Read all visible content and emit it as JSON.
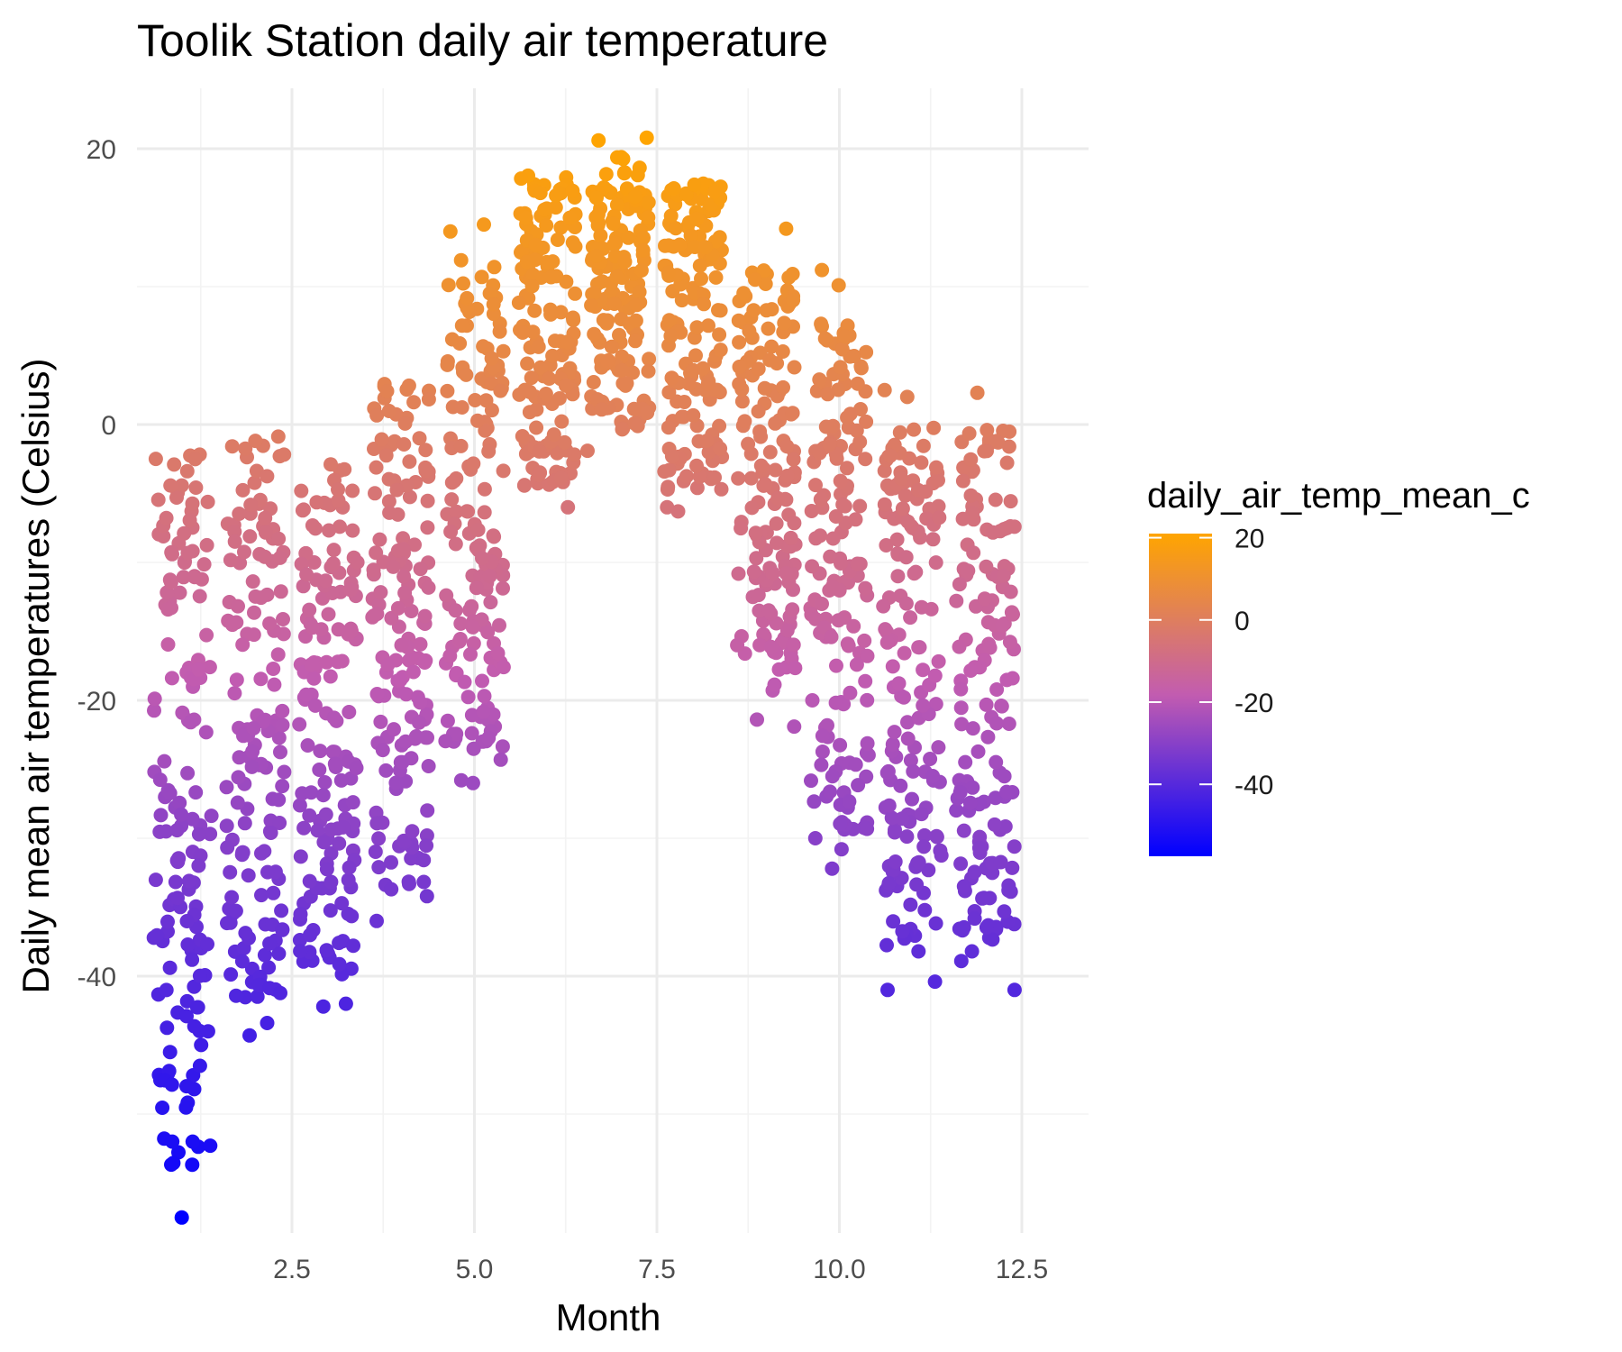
{
  "chart_data": {
    "type": "scatter",
    "title": "Toolik Station daily air temperature",
    "xlabel": "Month",
    "ylabel": "Daily mean air temperatures (Celsius)",
    "xlim": [
      0.45,
      12.85
    ],
    "ylim": [
      -58.5,
      25
    ],
    "x_ticks": [
      2.5,
      5.0,
      7.5,
      10.0,
      12.5
    ],
    "x_tick_labels": [
      "2.5",
      "5.0",
      "7.5",
      "10.0",
      "12.5"
    ],
    "y_ticks": [
      20,
      0,
      -20,
      -40
    ],
    "y_tick_labels": [
      "20",
      "0",
      "-20",
      "-40"
    ],
    "grid": true,
    "color_scale": {
      "variable": "daily_air_temp_mean_c",
      "low_color": "#0000ff",
      "high_color": "#ffa500",
      "range": [
        -57.5,
        21
      ],
      "ticks": [
        20,
        0,
        -20,
        -40
      ],
      "tick_labels": [
        "20",
        "0",
        "-20",
        "-40"
      ],
      "legend_position": "right"
    },
    "month_summary": [
      {
        "month": 1,
        "min": -57.5,
        "max": 1.5
      },
      {
        "month": 2,
        "min": -44.5,
        "max": 2.0
      },
      {
        "month": 3,
        "min": -42.5,
        "max": 1.0
      },
      {
        "month": 4,
        "min": -36.0,
        "max": 6.5
      },
      {
        "month": 5,
        "min": -26.0,
        "max": 14.5
      },
      {
        "month": 6,
        "min": -6.0,
        "max": 19.7
      },
      {
        "month": 7,
        "min": -2.0,
        "max": 20.8
      },
      {
        "month": 8,
        "min": -6.3,
        "max": 19.0
      },
      {
        "month": 9,
        "min": -21.5,
        "max": 14.0
      },
      {
        "month": 10,
        "min": -32.0,
        "max": 10.0
      },
      {
        "month": 11,
        "min": -41.0,
        "max": 2.5
      },
      {
        "month": 12,
        "min": -41.0,
        "max": 2.3
      }
    ],
    "highlight_points": [
      {
        "x": 0.99,
        "y": -57.5
      },
      {
        "x": 0.86,
        "y": -52.0
      },
      {
        "x": 1.14,
        "y": -52.0
      },
      {
        "x": 0.83,
        "y": -45.5
      },
      {
        "x": 1.24,
        "y": -46.5
      },
      {
        "x": 1.35,
        "y": -44.0
      },
      {
        "x": 1.92,
        "y": -44.3
      },
      {
        "x": 2.16,
        "y": -43.4
      },
      {
        "x": 2.93,
        "y": -42.2
      },
      {
        "x": 3.24,
        "y": -42.0
      },
      {
        "x": 3.66,
        "y": -36.0
      },
      {
        "x": 3.86,
        "y": -33.7
      },
      {
        "x": 4.35,
        "y": -34.2
      },
      {
        "x": 4.82,
        "y": -25.8
      },
      {
        "x": 4.98,
        "y": -26.0
      },
      {
        "x": 5.36,
        "y": -24.3
      },
      {
        "x": 4.67,
        "y": 14.0
      },
      {
        "x": 5.13,
        "y": 14.5
      },
      {
        "x": 6.7,
        "y": 20.6
      },
      {
        "x": 7.36,
        "y": 20.8
      },
      {
        "x": 6.28,
        "y": -6.0
      },
      {
        "x": 6.55,
        "y": -1.9
      },
      {
        "x": 7.64,
        "y": -6.0
      },
      {
        "x": 7.79,
        "y": -6.3
      },
      {
        "x": 8.87,
        "y": -21.4
      },
      {
        "x": 9.38,
        "y": -21.9
      },
      {
        "x": 8.6,
        "y": -16.0
      },
      {
        "x": 9.27,
        "y": 14.2
      },
      {
        "x": 9.76,
        "y": 11.2
      },
      {
        "x": 9.99,
        "y": 10.1
      },
      {
        "x": 9.67,
        "y": -30.0
      },
      {
        "x": 9.9,
        "y": -32.2
      },
      {
        "x": 10.03,
        "y": -30.8
      },
      {
        "x": 10.62,
        "y": 2.5
      },
      {
        "x": 10.66,
        "y": -41.0
      },
      {
        "x": 10.93,
        "y": 2.0
      },
      {
        "x": 11.31,
        "y": -40.4
      },
      {
        "x": 11.67,
        "y": -38.9
      },
      {
        "x": 11.89,
        "y": 2.3
      },
      {
        "x": 12.4,
        "y": -41.0
      }
    ]
  }
}
